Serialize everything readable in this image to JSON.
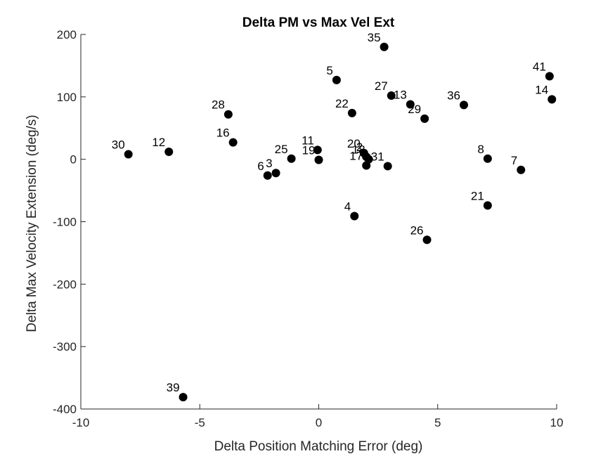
{
  "chart_data": {
    "type": "scatter",
    "title": "Delta PM vs Max Vel Ext",
    "xlabel": "Delta Position Matching Error (deg)",
    "ylabel": "Delta Max Velocity Extension (deg/s)",
    "xlim": [
      -10,
      10
    ],
    "ylim": [
      -400,
      200
    ],
    "xticks": [
      -10,
      -5,
      0,
      5,
      10
    ],
    "yticks": [
      -400,
      -300,
      -200,
      -100,
      0,
      100,
      200
    ],
    "grid": false,
    "legend": "none",
    "marker_color": "#000000",
    "points": [
      {
        "label": "35",
        "x": 2.75,
        "y": 180
      },
      {
        "label": "41",
        "x": 9.7,
        "y": 133
      },
      {
        "label": "5",
        "x": 0.75,
        "y": 127
      },
      {
        "label": "27",
        "x": 3.05,
        "y": 102
      },
      {
        "label": "14",
        "x": 9.8,
        "y": 96
      },
      {
        "label": "13",
        "x": 3.85,
        "y": 88
      },
      {
        "label": "36",
        "x": 6.1,
        "y": 87
      },
      {
        "label": "28",
        "x": -3.8,
        "y": 72
      },
      {
        "label": "22",
        "x": 1.4,
        "y": 74
      },
      {
        "label": "29",
        "x": 4.45,
        "y": 65
      },
      {
        "label": "16",
        "x": -3.6,
        "y": 27
      },
      {
        "label": "11",
        "x": -0.05,
        "y": 15
      },
      {
        "label": "12",
        "x": -6.3,
        "y": 12
      },
      {
        "label": "20",
        "x": 1.9,
        "y": 10
      },
      {
        "label": "30",
        "x": -8.0,
        "y": 8
      },
      {
        "label": "2",
        "x": 2.0,
        "y": 4
      },
      {
        "label": "25",
        "x": -1.15,
        "y": 1
      },
      {
        "label": "8",
        "x": 7.1,
        "y": 1
      },
      {
        "label": "19",
        "x": 0.0,
        "y": -1
      },
      {
        "label": "18",
        "x": 2.1,
        "y": 0
      },
      {
        "label": "17",
        "x": 2.0,
        "y": -10
      },
      {
        "label": "31",
        "x": 2.9,
        "y": -11
      },
      {
        "label": "7",
        "x": 8.5,
        "y": -17
      },
      {
        "label": "3",
        "x": -1.8,
        "y": -22
      },
      {
        "label": "6",
        "x": -2.15,
        "y": -26
      },
      {
        "label": "21",
        "x": 7.1,
        "y": -74
      },
      {
        "label": "4",
        "x": 1.5,
        "y": -91
      },
      {
        "label": "26",
        "x": 4.55,
        "y": -129
      },
      {
        "label": "39",
        "x": -5.7,
        "y": -381
      }
    ]
  }
}
